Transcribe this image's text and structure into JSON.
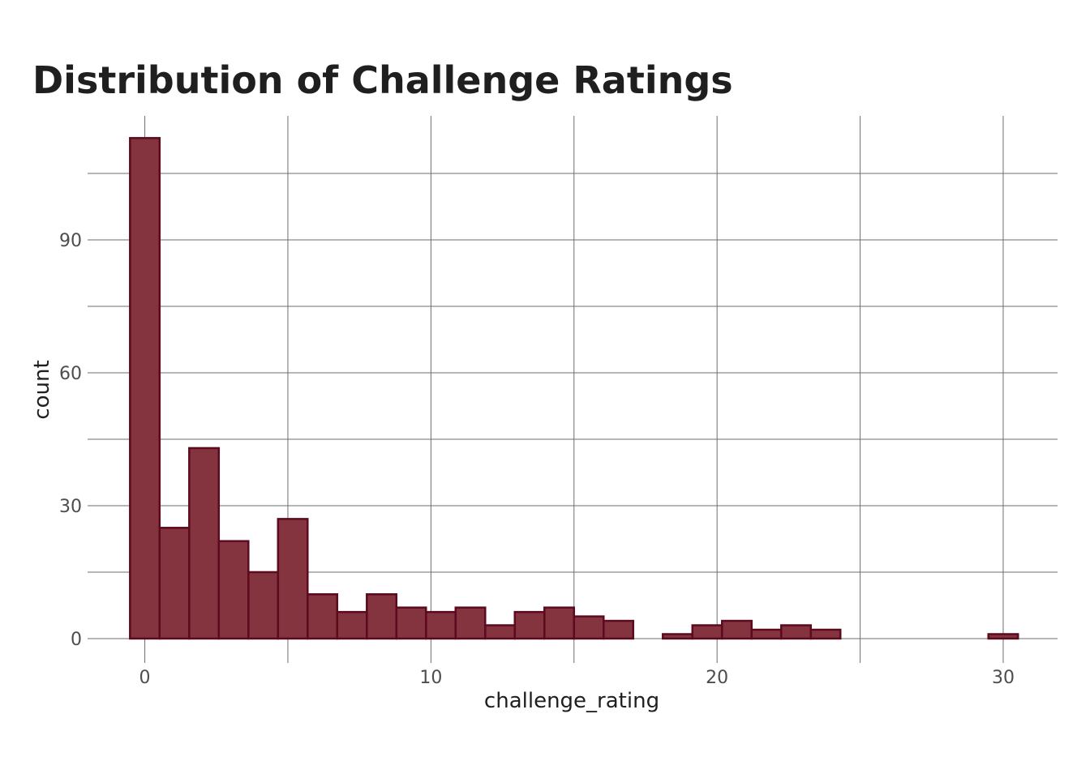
{
  "chart_data": {
    "type": "bar",
    "title": "Distribution of Challenge Ratings",
    "xlabel": "challenge_rating",
    "ylabel": "count",
    "bin_width": 1.034,
    "bins": [
      {
        "x": 0.0,
        "count": 113
      },
      {
        "x": 1.034,
        "count": 25
      },
      {
        "x": 2.069,
        "count": 43
      },
      {
        "x": 3.103,
        "count": 22
      },
      {
        "x": 4.138,
        "count": 15
      },
      {
        "x": 5.172,
        "count": 27
      },
      {
        "x": 6.207,
        "count": 10
      },
      {
        "x": 7.241,
        "count": 6
      },
      {
        "x": 8.276,
        "count": 10
      },
      {
        "x": 9.31,
        "count": 7
      },
      {
        "x": 10.345,
        "count": 6
      },
      {
        "x": 11.379,
        "count": 7
      },
      {
        "x": 12.414,
        "count": 3
      },
      {
        "x": 13.448,
        "count": 6
      },
      {
        "x": 14.483,
        "count": 7
      },
      {
        "x": 15.517,
        "count": 5
      },
      {
        "x": 16.552,
        "count": 4
      },
      {
        "x": 17.586,
        "count": 0
      },
      {
        "x": 18.621,
        "count": 1
      },
      {
        "x": 19.655,
        "count": 3
      },
      {
        "x": 20.69,
        "count": 4
      },
      {
        "x": 21.724,
        "count": 2
      },
      {
        "x": 22.759,
        "count": 3
      },
      {
        "x": 23.793,
        "count": 2
      },
      {
        "x": 24.828,
        "count": 0
      },
      {
        "x": 25.862,
        "count": 0
      },
      {
        "x": 26.897,
        "count": 0
      },
      {
        "x": 27.931,
        "count": 0
      },
      {
        "x": 28.966,
        "count": 0
      },
      {
        "x": 30.0,
        "count": 1
      }
    ],
    "xlim": [
      -2.0,
      31.9
    ],
    "ylim": [
      -5.5,
      118.0
    ],
    "x_ticks": [
      0,
      10,
      20,
      30
    ],
    "x_minor_ticks": [
      5,
      15,
      25
    ],
    "y_ticks": [
      0,
      30,
      60,
      90
    ],
    "y_minor_ticks": [
      15,
      45,
      75,
      105
    ],
    "grid": true,
    "legend": "none",
    "colors": {
      "bar_fill": "#84343f",
      "bar_outline": "#5c0a1e",
      "grid": "#6e6e6e",
      "tick_text": "#4d4d4d",
      "title_text": "#1f1f1f"
    }
  }
}
